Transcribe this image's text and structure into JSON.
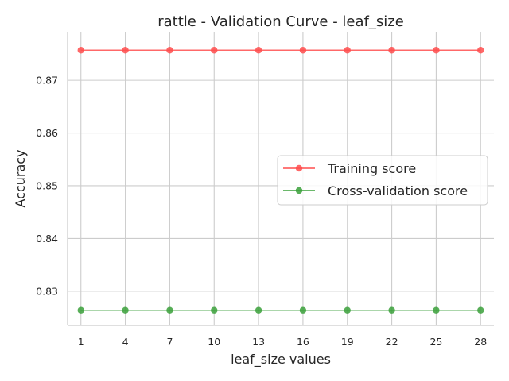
{
  "chart_data": {
    "type": "line",
    "title": "rattle - Validation Curve - leaf_size",
    "xlabel": "leaf_size values",
    "ylabel": "Accuracy",
    "x": [
      1,
      4,
      7,
      10,
      13,
      16,
      19,
      22,
      25,
      28
    ],
    "x_tick_labels": [
      "1",
      "4",
      "7",
      "10",
      "13",
      "16",
      "19",
      "22",
      "25",
      "28"
    ],
    "y_ticks": [
      0.83,
      0.84,
      0.85,
      0.86,
      0.87
    ],
    "y_tick_labels": [
      "0.83",
      "0.84",
      "0.85",
      "0.86",
      "0.87"
    ],
    "xlim": [
      0.1,
      28.9
    ],
    "ylim": [
      0.8235,
      0.8792
    ],
    "grid": true,
    "legend_position": "center-right",
    "series": [
      {
        "name": "Training score",
        "color": "#ff4d4d",
        "marker": "circle",
        "values": [
          0.8757,
          0.8757,
          0.8757,
          0.8757,
          0.8757,
          0.8757,
          0.8757,
          0.8757,
          0.8757,
          0.8757
        ]
      },
      {
        "name": "Cross-validation score",
        "color": "#3aa03a",
        "marker": "circle",
        "values": [
          0.8264,
          0.8264,
          0.8264,
          0.8264,
          0.8264,
          0.8264,
          0.8264,
          0.8264,
          0.8264,
          0.8264
        ]
      }
    ]
  }
}
